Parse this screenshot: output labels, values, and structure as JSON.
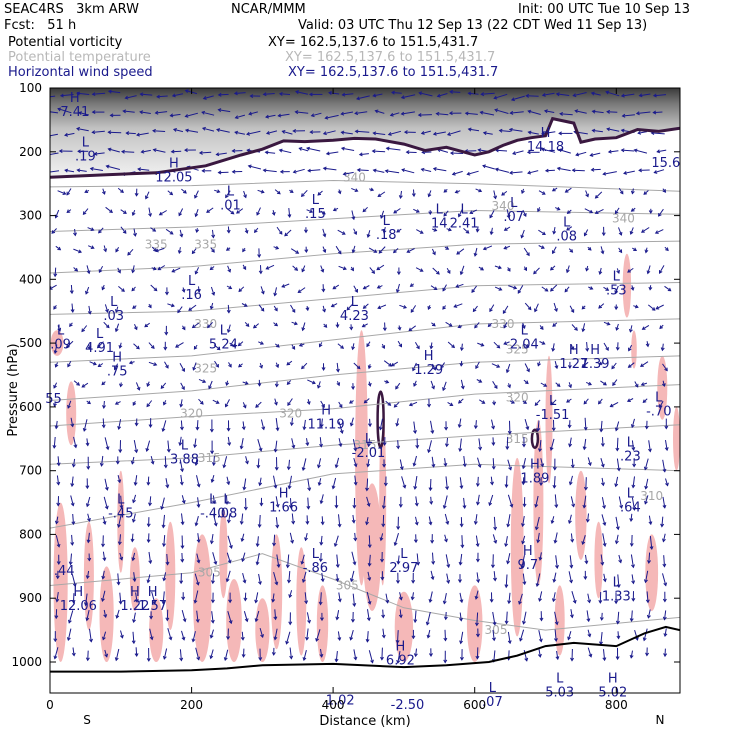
{
  "header": {
    "model": "SEAC4RS   3km ARW",
    "org": "NCAR/MMM",
    "init": "Init: 00 UTC Tue 10 Sep 13",
    "fcst": "Fcst:   51 h",
    "valid": "Valid: 03 UTC Thu 12 Sep 13 (22 CDT Wed 11 Sep 13)",
    "fields": [
      {
        "name": "Potential vorticity",
        "xy": "XY= 162.5,137.6 to 151.5,431.7"
      },
      {
        "name": "Potential temperature",
        "xy": "XY= 162.5,137.6 to 151.5,431.7"
      },
      {
        "name": "Horizontal wind speed",
        "xy": "XY= 162.5,137.6 to 151.5,431.7"
      }
    ]
  },
  "colors": {
    "pv_shade": "#f5b8b8",
    "theta": "#a8a8a8",
    "wind": "#1a1a8c",
    "tropopause": "#3a1840",
    "labels": "#1a1a8c"
  },
  "chart_data": {
    "type": "cross-section",
    "xlabel": "Distance (km)",
    "ylabel": "Pressure (hPa)",
    "xlim": [
      0,
      890
    ],
    "ylim": [
      1050,
      100
    ],
    "x_ticks": [
      0,
      200,
      400,
      600,
      800
    ],
    "y_ticks": [
      100,
      200,
      300,
      400,
      500,
      600,
      700,
      800,
      900,
      1000
    ],
    "end_labels": {
      "left": "S",
      "right": "N"
    },
    "theta_contours": [
      {
        "label": "340",
        "label_points": [
          [
            430,
            240
          ],
          [
            640,
            285
          ],
          [
            810,
            305
          ]
        ]
      },
      {
        "label": "335",
        "label_points": [
          [
            150,
            345
          ],
          [
            220,
            345
          ]
        ]
      },
      {
        "label": "330",
        "label_points": [
          [
            220,
            470
          ],
          [
            640,
            470
          ]
        ]
      },
      {
        "label": "325",
        "label_points": [
          [
            220,
            540
          ],
          [
            660,
            510
          ]
        ]
      },
      {
        "label": "320",
        "label_points": [
          [
            200,
            610
          ],
          [
            340,
            610
          ],
          [
            660,
            585
          ]
        ]
      },
      {
        "label": "315",
        "label_points": [
          [
            225,
            680
          ],
          [
            445,
            660
          ],
          [
            660,
            650
          ]
        ]
      },
      {
        "label": "310",
        "label_points": [
          [
            850,
            740
          ]
        ]
      },
      {
        "label": "305",
        "label_points": [
          [
            225,
            860
          ],
          [
            420,
            880
          ],
          [
            630,
            950
          ]
        ]
      }
    ],
    "hl_labels": [
      {
        "s": "H",
        "x": 35,
        "p": 125,
        "v": "7.41"
      },
      {
        "s": "L",
        "x": 50,
        "p": 195,
        "v": ".19"
      },
      {
        "s": "H",
        "x": 175,
        "p": 228,
        "v": "12.05"
      },
      {
        "s": "L",
        "x": 255,
        "p": 272,
        "v": ".01"
      },
      {
        "s": "L",
        "x": 375,
        "p": 285,
        "v": ".15"
      },
      {
        "s": "L",
        "x": 475,
        "p": 318,
        "v": ".18"
      },
      {
        "s": "L",
        "x": 550,
        "p": 300,
        "v": "14"
      },
      {
        "s": "L",
        "x": 585,
        "p": 300,
        "v": "2.41"
      },
      {
        "s": "L",
        "x": 655,
        "p": 290,
        "v": ".07"
      },
      {
        "s": "L",
        "x": 730,
        "p": 320,
        "v": ".08"
      },
      {
        "s": "H",
        "x": 700,
        "p": 180,
        "v": "14.18"
      },
      {
        "s": "",
        "x": 870,
        "p": 205,
        "v": "15.6"
      },
      {
        "s": "L",
        "x": 200,
        "p": 412,
        "v": ".16"
      },
      {
        "s": "L",
        "x": 90,
        "p": 445,
        "v": ".03"
      },
      {
        "s": "L",
        "x": 15,
        "p": 490,
        "v": ".09"
      },
      {
        "s": "L",
        "x": 70,
        "p": 495,
        "v": "4.91"
      },
      {
        "s": "H",
        "x": 95,
        "p": 532,
        "v": ".75"
      },
      {
        "s": "L",
        "x": 245,
        "p": 490,
        "v": "5.24"
      },
      {
        "s": "L",
        "x": 430,
        "p": 445,
        "v": "4.23"
      },
      {
        "s": "L",
        "x": 670,
        "p": 490,
        "v": "2.04"
      },
      {
        "s": "L",
        "x": 800,
        "p": 405,
        "v": ".53"
      },
      {
        "s": "H",
        "x": 535,
        "p": 530,
        "v": "1.29"
      },
      {
        "s": "H",
        "x": 740,
        "p": 520,
        "v": "1.27"
      },
      {
        "s": "H",
        "x": 770,
        "p": 520,
        "v": "1.39"
      },
      {
        "s": "",
        "x": 5,
        "p": 575,
        "v": "55"
      },
      {
        "s": "H",
        "x": 390,
        "p": 615,
        "v": "11.19"
      },
      {
        "s": "L",
        "x": 710,
        "p": 600,
        "v": "-1.51"
      },
      {
        "s": "L",
        "x": 860,
        "p": 595,
        "v": "-.70"
      },
      {
        "s": "L",
        "x": 190,
        "p": 670,
        "v": "3.88"
      },
      {
        "s": "L",
        "x": 450,
        "p": 660,
        "v": "-2.01"
      },
      {
        "s": "H",
        "x": 685,
        "p": 700,
        "v": "1.89"
      },
      {
        "s": "L",
        "x": 820,
        "p": 665,
        "v": ".23"
      },
      {
        "s": "L",
        "x": 100,
        "p": 755,
        "v": "-.45"
      },
      {
        "s": "L",
        "x": 230,
        "p": 755,
        "v": "-.40"
      },
      {
        "s": "L",
        "x": 250,
        "p": 755,
        "v": ".08"
      },
      {
        "s": "H",
        "x": 330,
        "p": 745,
        "v": "1.66"
      },
      {
        "s": "L",
        "x": 820,
        "p": 745,
        "v": ".64"
      },
      {
        "s": "L",
        "x": 375,
        "p": 840,
        "v": "-.86"
      },
      {
        "s": "L",
        "x": 500,
        "p": 840,
        "v": "2.97"
      },
      {
        "s": "H",
        "x": 675,
        "p": 835,
        "v": "9.7"
      },
      {
        "s": "",
        "x": 20,
        "p": 845,
        "v": ".44"
      },
      {
        "s": "H",
        "x": 40,
        "p": 900,
        "v": "12.06"
      },
      {
        "s": "H",
        "x": 120,
        "p": 900,
        "v": "1.22"
      },
      {
        "s": "H",
        "x": 145,
        "p": 900,
        "v": "1.57"
      },
      {
        "s": "L",
        "x": 800,
        "p": 885,
        "v": "1.33"
      },
      {
        "s": "H",
        "x": 495,
        "p": 985,
        "v": "6.92"
      },
      {
        "s": "",
        "x": 410,
        "p": 1048,
        "v": "1.02"
      },
      {
        "s": "",
        "x": 505,
        "p": 1055,
        "v": "-2.50"
      },
      {
        "s": "L",
        "x": 625,
        "p": 1050,
        "v": ".07"
      },
      {
        "s": "L",
        "x": 720,
        "p": 1035,
        "v": "5.03"
      },
      {
        "s": "H",
        "x": 795,
        "p": 1035,
        "v": "5.02"
      }
    ]
  }
}
